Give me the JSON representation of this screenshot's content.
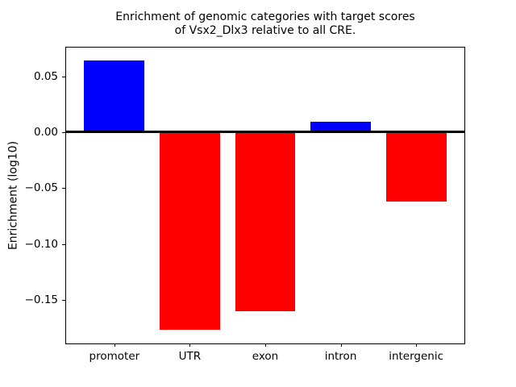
{
  "figure": {
    "background": "#ffffff",
    "title_line1": "Enrichment of genomic categories with target scores",
    "title_line2": "of Vsx2_Dlx3 relative to all CRE."
  },
  "chart_data": {
    "type": "bar",
    "title": "Enrichment of genomic categories with target scores\nof Vsx2_Dlx3 relative to all CRE.",
    "categories": [
      "promoter",
      "UTR",
      "exon",
      "intron",
      "intergenic"
    ],
    "values": [
      0.064,
      -0.177,
      -0.16,
      0.009,
      -0.062
    ],
    "bar_colors": [
      "#0000ff",
      "#ff0000",
      "#ff0000",
      "#0000ff",
      "#ff0000"
    ],
    "positive_color": "#0000ff",
    "negative_color": "#ff0000",
    "xlabel": "",
    "ylabel": "Enrichment (log10)",
    "xlim": [
      -0.64,
      4.64
    ],
    "ylim": [
      -0.189,
      0.0756
    ],
    "yticks": [
      0.05,
      0.0,
      -0.05,
      -0.1,
      -0.15
    ],
    "ytick_labels": [
      "0.05",
      "0.00",
      "−0.05",
      "−0.10",
      "−0.15"
    ],
    "bar_width": 0.8,
    "zero_line": true,
    "grid": false,
    "legend": false,
    "axis_color": "#000000",
    "text_color": "#000000"
  }
}
